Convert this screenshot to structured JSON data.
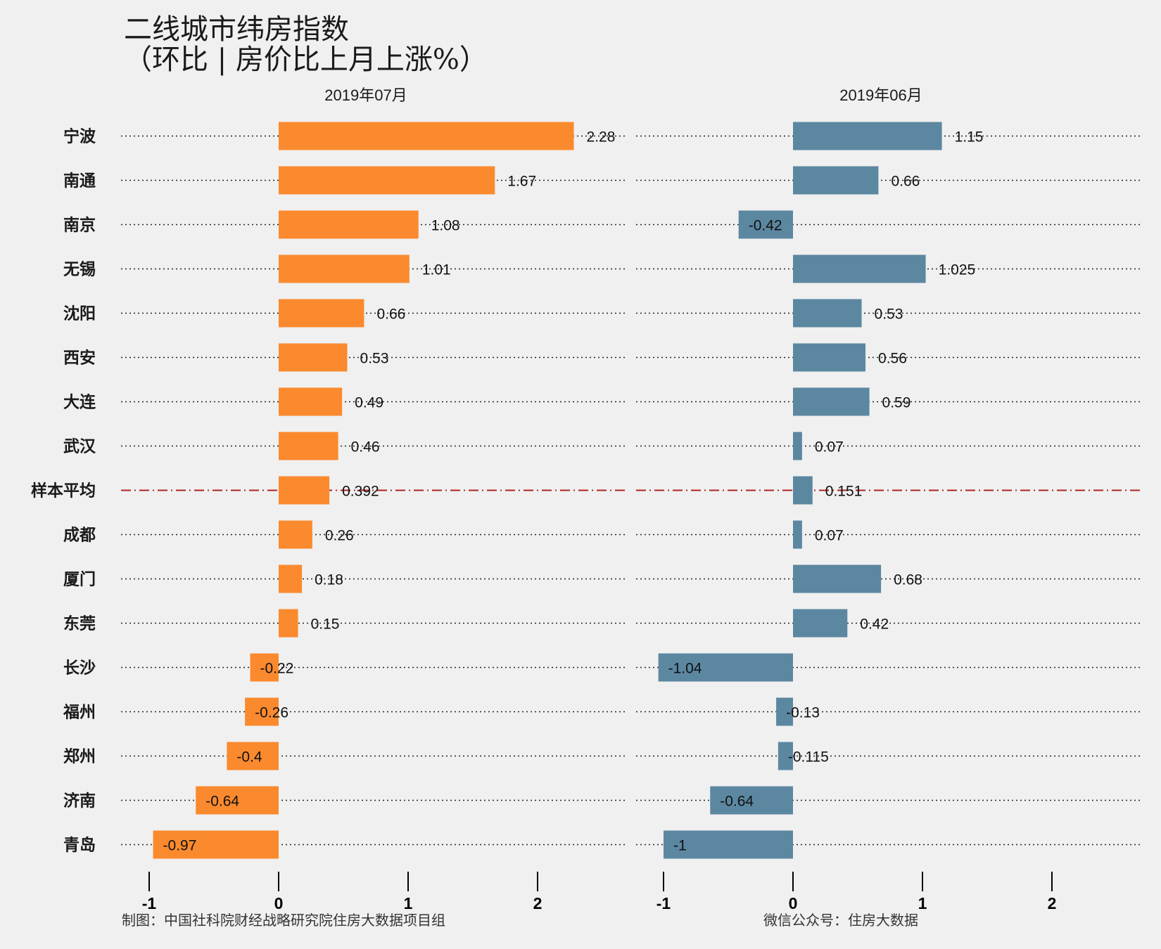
{
  "title": {
    "line1": "二线城市纬房指数",
    "line2": "（环比 | 房价比上月上涨%）"
  },
  "footer": {
    "left": "制图：中国社科院财经战略研究院住房大数据项目组",
    "right": "微信公众号：住房大数据"
  },
  "colors": {
    "background": "#f0f0f0",
    "bar_left": "#fb8a2e",
    "bar_right": "#5c87a1",
    "average_line": "#b22222",
    "dotted_grid": "#222222"
  },
  "chart_data": {
    "type": "bar",
    "orientation": "horizontal",
    "categories": [
      "宁波",
      "南通",
      "南京",
      "无锡",
      "沈阳",
      "西安",
      "大连",
      "武汉",
      "样本平均",
      "成都",
      "厦门",
      "东莞",
      "长沙",
      "福州",
      "郑州",
      "济南",
      "青岛"
    ],
    "average_category": "样本平均",
    "series": [
      {
        "name": "2019年07月",
        "values": [
          2.28,
          1.67,
          1.08,
          1.01,
          0.66,
          0.53,
          0.49,
          0.46,
          0.392,
          0.26,
          0.18,
          0.15,
          -0.22,
          -0.26,
          -0.4,
          -0.64,
          -0.97
        ],
        "labels": [
          "2.28",
          "1.67",
          "1.08",
          "1.01",
          "0.66",
          "0.53",
          "0.49",
          "0.46",
          "0.392",
          "0.26",
          "0.18",
          "0.15",
          "-0.22",
          "-0.26",
          "-0.4",
          "-0.64",
          "-0.97"
        ]
      },
      {
        "name": "2019年06月",
        "values": [
          1.15,
          0.66,
          -0.42,
          1.025,
          0.53,
          0.56,
          0.59,
          0.07,
          0.151,
          0.07,
          0.68,
          0.42,
          -1.04,
          -0.13,
          -0.115,
          -0.64,
          -1
        ],
        "labels": [
          "1.15",
          "0.66",
          "-0.42",
          "1.025",
          "0.53",
          "0.56",
          "0.59",
          "0.07",
          "0.151",
          "0.07",
          "0.68",
          "0.42",
          "-1.04",
          "-0.13",
          "-0.115",
          "-0.64",
          "-1"
        ]
      }
    ],
    "xlim": [
      -1.25,
      2.65
    ],
    "xticks": [
      -1,
      0,
      1,
      2
    ],
    "xtick_labels": [
      "-1",
      "0",
      "1",
      "2"
    ]
  }
}
